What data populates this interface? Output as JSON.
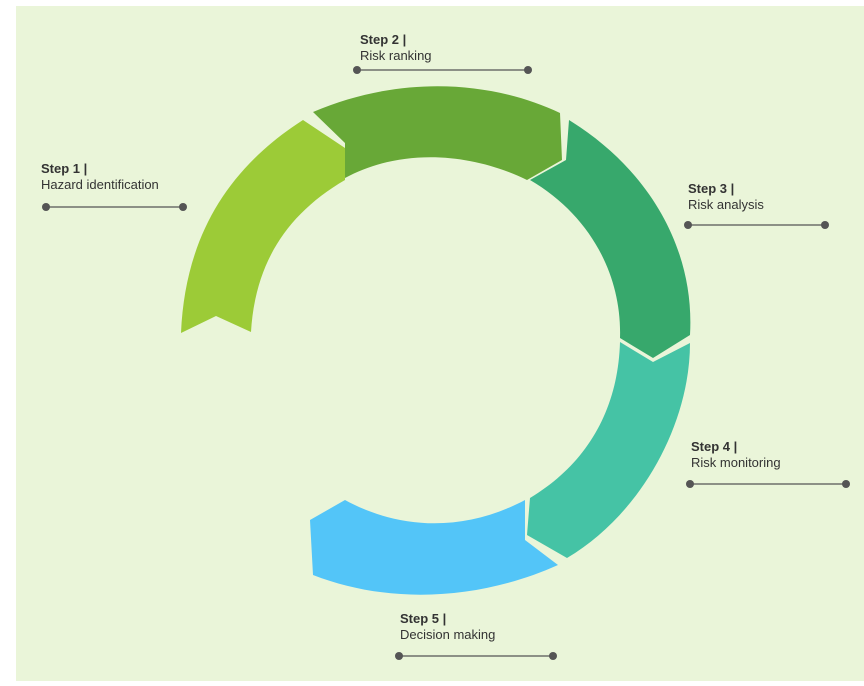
{
  "steps": [
    {
      "title": "Step 1 |",
      "subtitle": "Hazard  identification",
      "color": "#9ccb37"
    },
    {
      "title": "Step 2 |",
      "subtitle": "Risk ranking",
      "color": "#68a837"
    },
    {
      "title": "Step 3 |",
      "subtitle": "Risk analysis",
      "color": "#37a86c"
    },
    {
      "title": "Step 4 |",
      "subtitle": "Risk monitoring",
      "color": "#45c3a5"
    },
    {
      "title": "Step 5 |",
      "subtitle": "Decision making",
      "color": "#53c5f8"
    }
  ],
  "colors": {
    "background": "#eaf5d9",
    "connector": "#555555"
  }
}
